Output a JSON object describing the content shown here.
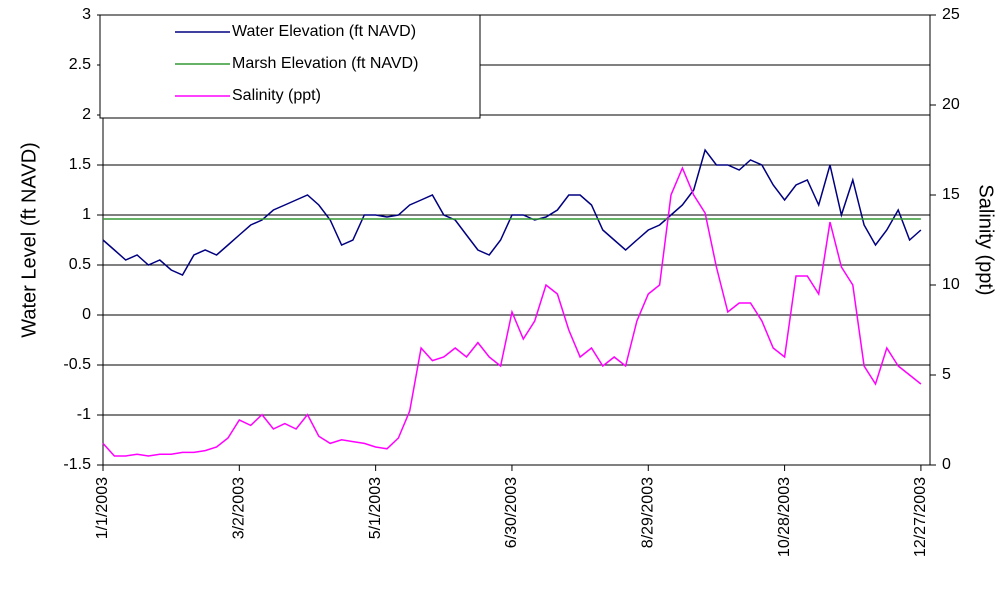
{
  "chart_data": {
    "type": "line",
    "x": [
      "1/1/2003",
      "1/6/2003",
      "1/11/2003",
      "1/16/2003",
      "1/21/2003",
      "1/26/2003",
      "1/31/2003",
      "2/5/2003",
      "2/10/2003",
      "2/15/2003",
      "2/20/2003",
      "2/25/2003",
      "3/2/2003",
      "3/7/2003",
      "3/12/2003",
      "3/17/2003",
      "3/22/2003",
      "3/27/2003",
      "4/1/2003",
      "4/6/2003",
      "4/11/2003",
      "4/16/2003",
      "4/21/2003",
      "4/26/2003",
      "5/1/2003",
      "5/6/2003",
      "5/11/2003",
      "5/16/2003",
      "5/21/2003",
      "5/26/2003",
      "5/31/2003",
      "6/5/2003",
      "6/10/2003",
      "6/15/2003",
      "6/20/2003",
      "6/25/2003",
      "6/30/2003",
      "7/5/2003",
      "7/10/2003",
      "7/15/2003",
      "7/20/2003",
      "7/25/2003",
      "7/30/2003",
      "8/4/2003",
      "8/9/2003",
      "8/14/2003",
      "8/19/2003",
      "8/24/2003",
      "8/29/2003",
      "9/3/2003",
      "9/8/2003",
      "9/13/2003",
      "9/18/2003",
      "9/23/2003",
      "9/28/2003",
      "10/3/2003",
      "10/8/2003",
      "10/13/2003",
      "10/18/2003",
      "10/23/2003",
      "10/28/2003",
      "11/2/2003",
      "11/7/2003",
      "11/12/2003",
      "11/17/2003",
      "11/22/2003",
      "11/27/2003",
      "12/2/2003",
      "12/7/2003",
      "12/12/2003",
      "12/17/2003",
      "12/22/2003",
      "12/27/2003"
    ],
    "series": [
      {
        "name": "Water Elevation (ft NAVD)",
        "color": "#000080",
        "axis": "y",
        "values": [
          0.75,
          0.65,
          0.55,
          0.6,
          0.5,
          0.55,
          0.45,
          0.4,
          0.6,
          0.65,
          0.6,
          0.7,
          0.8,
          0.9,
          0.95,
          1.05,
          1.1,
          1.15,
          1.2,
          1.1,
          0.95,
          0.7,
          0.75,
          1.0,
          1.0,
          0.98,
          1.0,
          1.1,
          1.15,
          1.2,
          1.0,
          0.95,
          0.8,
          0.65,
          0.6,
          0.75,
          1.0,
          1.0,
          0.95,
          0.98,
          1.05,
          1.2,
          1.2,
          1.1,
          0.85,
          0.75,
          0.65,
          0.75,
          0.85,
          0.9,
          1.0,
          1.1,
          1.25,
          1.65,
          1.5,
          1.5,
          1.45,
          1.55,
          1.5,
          1.3,
          1.15,
          1.3,
          1.35,
          1.1,
          1.5,
          1.0,
          1.35,
          0.9,
          0.7,
          0.85,
          1.05,
          0.75,
          0.85
        ]
      },
      {
        "name": "Marsh Elevation (ft NAVD)",
        "color": "#339933",
        "axis": "y",
        "values": [
          0.96,
          0.96,
          0.96,
          0.96,
          0.96,
          0.96,
          0.96,
          0.96,
          0.96,
          0.96,
          0.96,
          0.96,
          0.96,
          0.96,
          0.96,
          0.96,
          0.96,
          0.96,
          0.96,
          0.96,
          0.96,
          0.96,
          0.96,
          0.96,
          0.96,
          0.96,
          0.96,
          0.96,
          0.96,
          0.96,
          0.96,
          0.96,
          0.96,
          0.96,
          0.96,
          0.96,
          0.96,
          0.96,
          0.96,
          0.96,
          0.96,
          0.96,
          0.96,
          0.96,
          0.96,
          0.96,
          0.96,
          0.96,
          0.96,
          0.96,
          0.96,
          0.96,
          0.96,
          0.96,
          0.96,
          0.96,
          0.96,
          0.96,
          0.96,
          0.96,
          0.96,
          0.96,
          0.96,
          0.96,
          0.96,
          0.96,
          0.96,
          0.96,
          0.96,
          0.96,
          0.96,
          0.96,
          0.96
        ]
      },
      {
        "name": "Salinity (ppt)",
        "color": "#ff00ff",
        "axis": "y2",
        "values": [
          1.2,
          0.5,
          0.5,
          0.6,
          0.5,
          0.6,
          0.6,
          0.7,
          0.7,
          0.8,
          1.0,
          1.5,
          2.5,
          2.2,
          2.8,
          2.0,
          2.3,
          2.0,
          2.8,
          1.6,
          1.2,
          1.4,
          1.3,
          1.2,
          1.0,
          0.9,
          1.5,
          3.0,
          6.5,
          5.8,
          6.0,
          6.5,
          6.0,
          6.8,
          6.0,
          5.5,
          8.5,
          7.0,
          8.0,
          10.0,
          9.5,
          7.5,
          6.0,
          6.5,
          5.5,
          6.0,
          5.5,
          8.0,
          9.5,
          10.0,
          15.0,
          16.5,
          15.0,
          14.0,
          11.0,
          8.5,
          9.0,
          9.0,
          8.0,
          6.5,
          6.0,
          10.5,
          10.5,
          9.5,
          13.5,
          11.0,
          10.0,
          5.5,
          4.5,
          6.5,
          5.5,
          5.0,
          4.5
        ]
      }
    ],
    "y_label": "Water Level (ft NAVD)",
    "y2_label": "Salinity (ppt)",
    "xlim": [
      "1/1/2003",
      "12/31/2003"
    ],
    "xticks": [
      "1/1/2003",
      "3/2/2003",
      "5/1/2003",
      "6/30/2003",
      "8/29/2003",
      "10/28/2003",
      "12/27/2003"
    ],
    "ylim": [
      -1.5,
      3
    ],
    "yticks": [
      -1.5,
      -1,
      -0.5,
      0,
      0.5,
      1,
      1.5,
      2,
      2.5,
      3
    ],
    "y2lim": [
      0,
      25
    ],
    "y2ticks": [
      0,
      5,
      10,
      15,
      20,
      25
    ],
    "grid": true,
    "legend": "upper left"
  }
}
